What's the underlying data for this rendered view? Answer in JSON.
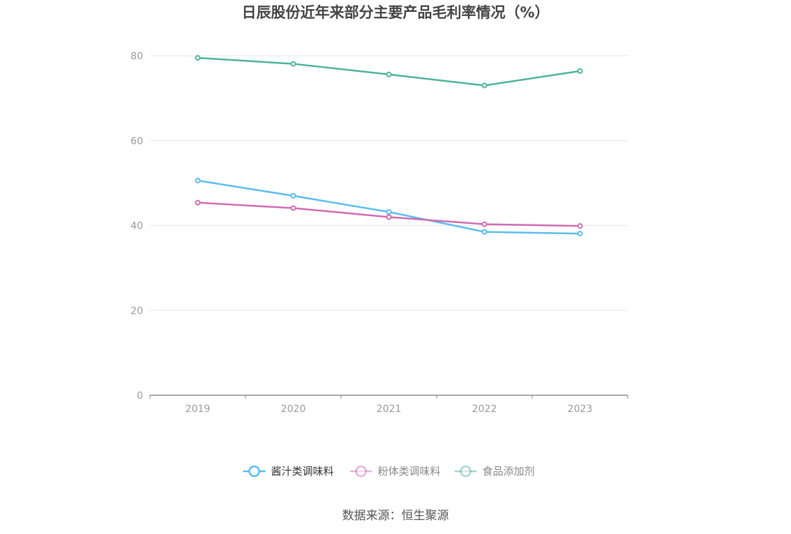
{
  "chart_data": {
    "type": "line",
    "title": "日辰股份近年来部分主要产品毛利率情况（%）",
    "categories": [
      "2019",
      "2020",
      "2021",
      "2022",
      "2023"
    ],
    "ylim": [
      0,
      80
    ],
    "yticks": [
      0,
      20,
      40,
      60,
      80
    ],
    "grid": true,
    "legend_position": "bottom",
    "series": [
      {
        "name": "酱汁类调味料",
        "color": "#5bbcf2",
        "values": [
          50.6,
          47.0,
          43.2,
          38.5,
          38.1
        ]
      },
      {
        "name": "粉体类调味料",
        "color": "#d06bb4",
        "values": [
          45.4,
          44.1,
          42.0,
          40.3,
          39.9
        ]
      },
      {
        "name": "食品添加剂",
        "color": "#4db39a",
        "values": [
          79.5,
          78.1,
          75.6,
          73.0,
          76.4
        ]
      }
    ],
    "source": "数据来源：恒生聚源"
  }
}
